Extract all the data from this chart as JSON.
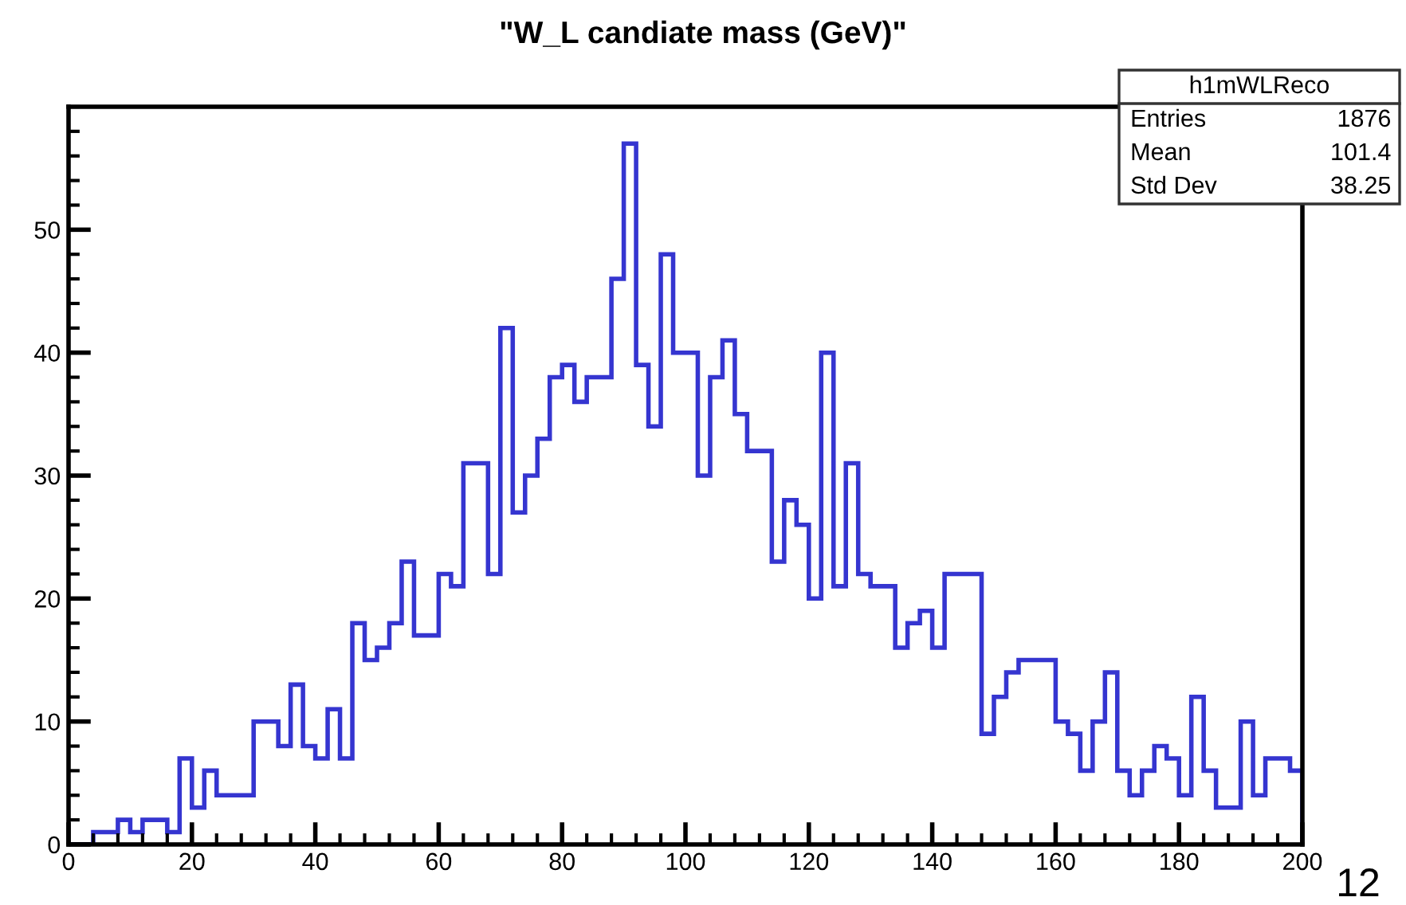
{
  "chart_data": {
    "type": "histogram",
    "title": "\"W_L candiate mass (GeV)\"",
    "bins": [
      0,
      2,
      4,
      6,
      8,
      10,
      12,
      14,
      16,
      18,
      20,
      22,
      24,
      26,
      28,
      30,
      32,
      34,
      36,
      38,
      40,
      42,
      44,
      46,
      48,
      50,
      52,
      54,
      56,
      58,
      60,
      62,
      64,
      66,
      68,
      70,
      72,
      74,
      76,
      78,
      80,
      82,
      84,
      86,
      88,
      90,
      92,
      94,
      96,
      98,
      100,
      102,
      104,
      106,
      108,
      110,
      112,
      114,
      116,
      118,
      120,
      122,
      124,
      126,
      128,
      130,
      132,
      134,
      136,
      138,
      140,
      142,
      144,
      146,
      148,
      150,
      152,
      154,
      156,
      158,
      160,
      162,
      164,
      166,
      168,
      170,
      172,
      174,
      176,
      178,
      180,
      182,
      184,
      186,
      188,
      190,
      192,
      194,
      196,
      198,
      200
    ],
    "values": [
      0,
      0,
      1,
      1,
      2,
      1,
      2,
      2,
      1,
      7,
      3,
      6,
      4,
      4,
      4,
      10,
      10,
      8,
      13,
      8,
      7,
      11,
      7,
      18,
      15,
      16,
      18,
      23,
      17,
      17,
      22,
      21,
      31,
      31,
      22,
      42,
      27,
      30,
      33,
      38,
      39,
      36,
      38,
      38,
      46,
      57,
      39,
      34,
      48,
      40,
      40,
      30,
      38,
      41,
      35,
      32,
      32,
      23,
      28,
      26,
      20,
      40,
      21,
      31,
      22,
      21,
      21,
      16,
      18,
      19,
      16,
      22,
      22,
      22,
      9,
      12,
      14,
      15,
      15,
      15,
      10,
      9,
      6,
      10,
      14,
      6,
      4,
      6,
      8,
      7,
      4,
      12,
      6,
      3,
      3,
      10,
      4,
      7,
      7,
      6
    ],
    "color": "#3535d0",
    "xlim": [
      0,
      200
    ],
    "ylim": [
      0,
      60
    ],
    "xticks": [
      0,
      20,
      40,
      60,
      80,
      100,
      120,
      140,
      160,
      180,
      200
    ],
    "yticks": [
      0,
      10,
      20,
      30,
      40,
      50
    ],
    "grid": false,
    "annotations": [
      "h1mWLReco",
      "Entries",
      "1876",
      "Mean",
      "101.4",
      "Std Dev",
      "38.25",
      "12"
    ]
  }
}
